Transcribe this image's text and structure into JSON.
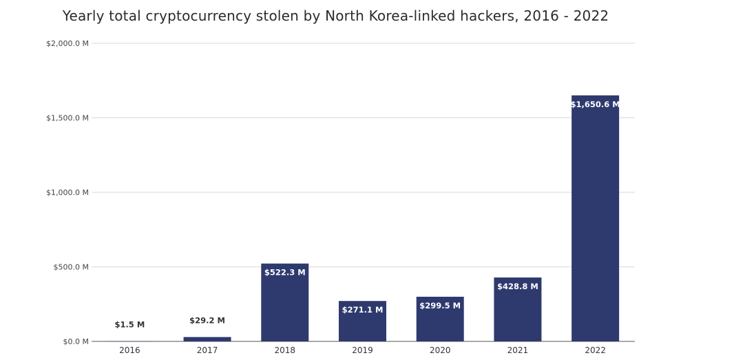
{
  "chart_data": {
    "type": "bar",
    "title": "Yearly total cryptocurrency stolen by North Korea-linked hackers, 2016 - 2022",
    "xlabel": "",
    "ylabel": "",
    "categories": [
      "2016",
      "2017",
      "2018",
      "2019",
      "2020",
      "2021",
      "2022"
    ],
    "values": [
      1.5,
      29.2,
      522.3,
      271.1,
      299.5,
      428.8,
      1650.6
    ],
    "data_labels": [
      "$1.5 M",
      "$29.2 M",
      "$522.3 M",
      "$271.1 M",
      "$299.5 M",
      "$428.8 M",
      "$1,650.6 M"
    ],
    "ylim": [
      0,
      2000
    ],
    "yticks": [
      0,
      500,
      1000,
      1500,
      2000
    ],
    "ytick_labels": [
      "$0.0 M",
      "$500.0 M",
      "$1,000.0 M",
      "$1,500.0 M",
      "$2,000.0 M"
    ],
    "grid": true,
    "legend": "none",
    "colors": {
      "bar": "#2e3a6e",
      "label_inside": "#ffffff",
      "label_outside": "#333333",
      "grid": "#d9d9d9",
      "axis": "#555555"
    }
  }
}
